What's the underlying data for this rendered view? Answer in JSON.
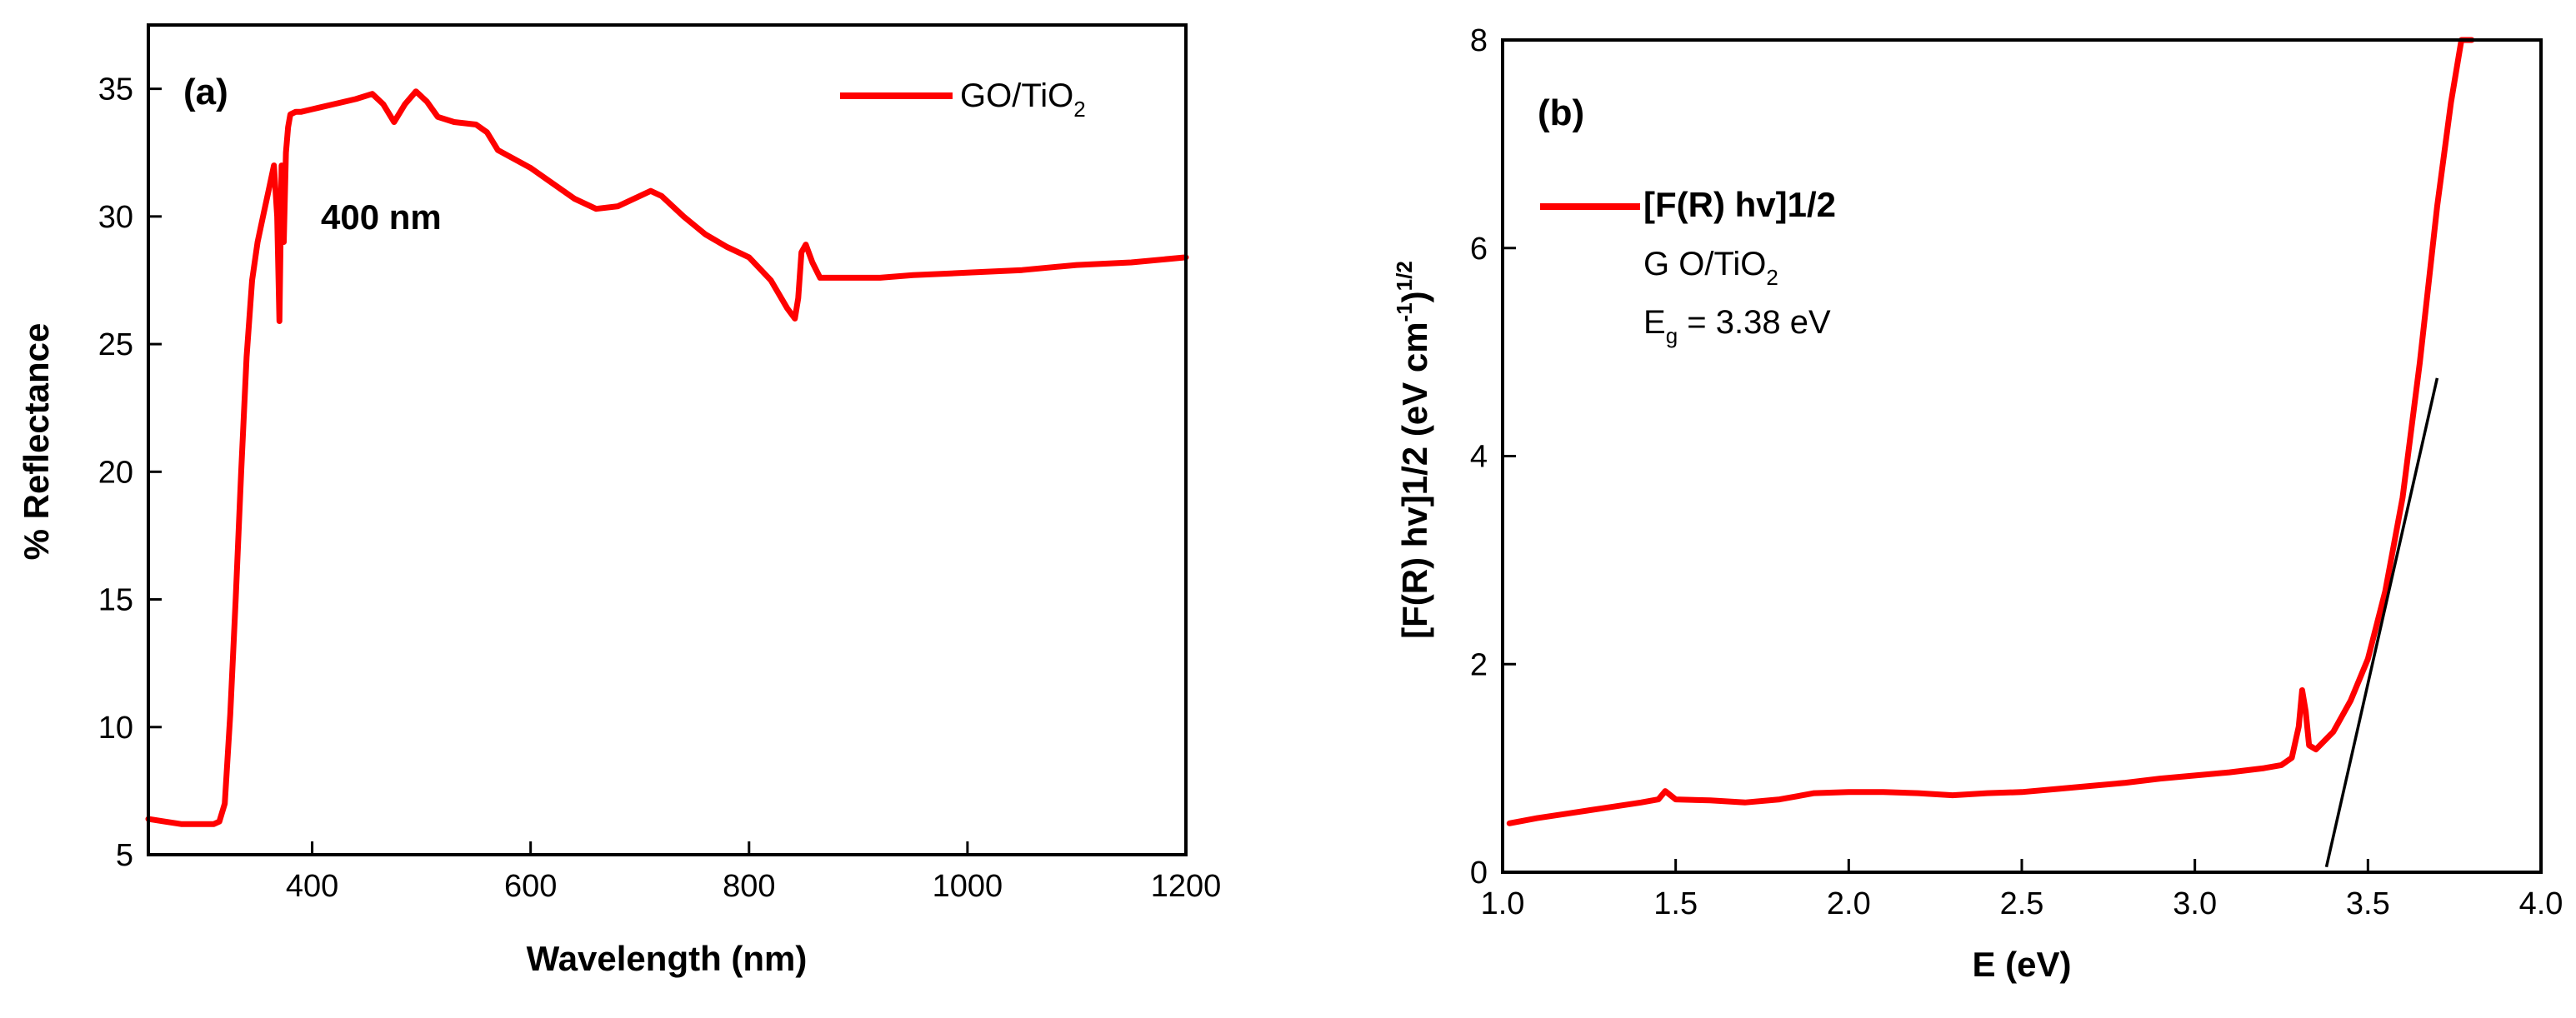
{
  "colors": {
    "series": "#ff0000",
    "fit": "#000000",
    "axes": "#000000",
    "background": "#ffffff"
  },
  "chart_data": [
    {
      "panel": "(a)",
      "type": "line",
      "xlabel": "Wavelength (nm)",
      "ylabel": "% Reflectance",
      "xlim": [
        250,
        1200
      ],
      "ylim": [
        5,
        37.5
      ],
      "xticks": [
        400,
        600,
        800,
        1000,
        1200
      ],
      "yticks": [
        5,
        10,
        15,
        20,
        25,
        30,
        35
      ],
      "legend": {
        "label": "GO/TiO",
        "subscript": "2",
        "placement": "top-right"
      },
      "annotations": [
        {
          "text": "400 nm"
        }
      ],
      "series": [
        {
          "name": "GO/TiO2",
          "x": [
            250,
            265,
            280,
            300,
            310,
            315,
            320,
            325,
            330,
            335,
            340,
            345,
            350,
            355,
            360,
            365,
            368,
            370,
            372,
            374,
            376,
            378,
            380,
            385,
            390,
            400,
            420,
            440,
            455,
            465,
            475,
            485,
            495,
            505,
            515,
            530,
            550,
            560,
            570,
            600,
            620,
            640,
            660,
            680,
            700,
            710,
            720,
            740,
            760,
            780,
            800,
            820,
            835,
            842,
            845,
            848,
            852,
            858,
            865,
            875,
            890,
            920,
            950,
            1000,
            1050,
            1100,
            1150,
            1200
          ],
          "y": [
            6.4,
            6.3,
            6.2,
            6.2,
            6.2,
            6.3,
            7.0,
            10.5,
            15.0,
            20.0,
            24.5,
            27.5,
            29.0,
            30.0,
            31.0,
            32.0,
            30.0,
            25.9,
            32.0,
            29.0,
            32.5,
            33.5,
            34.0,
            34.1,
            34.1,
            34.2,
            34.4,
            34.6,
            34.8,
            34.4,
            33.7,
            34.4,
            34.9,
            34.5,
            33.9,
            33.7,
            33.6,
            33.3,
            32.6,
            31.9,
            31.3,
            30.7,
            30.3,
            30.4,
            30.8,
            31.0,
            30.8,
            30.0,
            29.3,
            28.8,
            28.4,
            27.5,
            26.4,
            26.0,
            26.8,
            28.6,
            28.9,
            28.2,
            27.6,
            27.6,
            27.6,
            27.6,
            27.7,
            27.8,
            27.9,
            28.1,
            28.2,
            28.4
          ]
        }
      ]
    },
    {
      "panel": "(b)",
      "type": "line",
      "xlabel": "E (eV)",
      "ylabel_main": "[F(R) hv]1/2 (eV cm",
      "ylabel_sup1": "-1",
      "ylabel_mid": ")",
      "ylabel_sup2": "1/2",
      "xlim": [
        1.0,
        4.0
      ],
      "ylim": [
        0,
        8
      ],
      "xticks": [
        1.0,
        1.5,
        2.0,
        2.5,
        3.0,
        3.5,
        4.0
      ],
      "xtick_labels": [
        "1.0",
        "1.5",
        "2.0",
        "2.5",
        "3.0",
        "3.5",
        "4.0"
      ],
      "yticks": [
        0,
        2,
        4,
        6,
        8
      ],
      "legend": {
        "label": "[F(R) hv]1/2",
        "placement": "top-left"
      },
      "annotations": [
        {
          "text_main": "G O/TiO",
          "text_sub": "2"
        },
        {
          "text_main": "E",
          "text_sub": "g",
          "text_rest": " = 3.38 eV"
        }
      ],
      "series": [
        {
          "name": "[F(R) hv]1/2",
          "x": [
            1.02,
            1.1,
            1.2,
            1.3,
            1.4,
            1.45,
            1.47,
            1.5,
            1.6,
            1.7,
            1.8,
            1.9,
            2.0,
            2.1,
            2.2,
            2.3,
            2.4,
            2.5,
            2.6,
            2.7,
            2.8,
            2.9,
            3.0,
            3.1,
            3.2,
            3.25,
            3.28,
            3.3,
            3.31,
            3.32,
            3.33,
            3.35,
            3.4,
            3.45,
            3.5,
            3.55,
            3.6,
            3.65,
            3.7,
            3.74,
            3.77,
            3.8
          ],
          "y": [
            0.47,
            0.52,
            0.57,
            0.62,
            0.67,
            0.7,
            0.78,
            0.7,
            0.69,
            0.67,
            0.7,
            0.76,
            0.77,
            0.77,
            0.76,
            0.74,
            0.76,
            0.77,
            0.8,
            0.83,
            0.86,
            0.9,
            0.93,
            0.96,
            1.0,
            1.03,
            1.1,
            1.4,
            1.75,
            1.55,
            1.22,
            1.18,
            1.35,
            1.65,
            2.05,
            2.7,
            3.6,
            4.9,
            6.4,
            7.4,
            8.0,
            8.0
          ]
        },
        {
          "name": "linear fit",
          "x": [
            3.38,
            3.7
          ],
          "y": [
            0.05,
            4.75
          ]
        }
      ]
    }
  ]
}
